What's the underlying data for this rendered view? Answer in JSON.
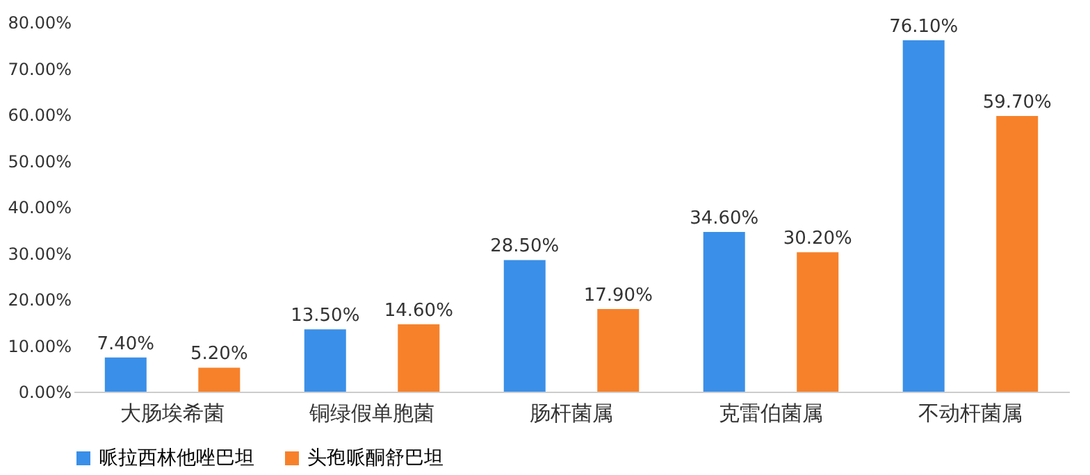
{
  "chart_data": {
    "type": "bar",
    "categories": [
      "大肠埃希菌",
      "铜绿假单胞菌",
      "肠杆菌属",
      "克雷伯菌属",
      "不动杆菌属"
    ],
    "series": [
      {
        "name": "哌拉西林他唑巴坦",
        "color": "#3a8fe8",
        "values": [
          7.4,
          13.5,
          28.5,
          34.6,
          76.1
        ],
        "value_labels": [
          "7.40%",
          "13.50%",
          "28.50%",
          "34.60%",
          "76.10%"
        ]
      },
      {
        "name": "头孢哌酮舒巴坦",
        "color": "#f7812a",
        "values": [
          5.2,
          14.6,
          17.9,
          30.2,
          59.7
        ],
        "value_labels": [
          "5.20%",
          "14.60%",
          "17.90%",
          "30.20%",
          "59.70%"
        ]
      }
    ],
    "ylim": [
      0,
      80
    ],
    "yticks": [
      {
        "value": 0,
        "label": "0.00%"
      },
      {
        "value": 10,
        "label": "10.00%"
      },
      {
        "value": 20,
        "label": "20.00%"
      },
      {
        "value": 30,
        "label": "30.00%"
      },
      {
        "value": 40,
        "label": "40.00%"
      },
      {
        "value": 50,
        "label": "50.00%"
      },
      {
        "value": 60,
        "label": "60.00%"
      },
      {
        "value": 70,
        "label": "70.00%"
      },
      {
        "value": 80,
        "label": "80.00%"
      }
    ],
    "grid": false,
    "legend": "bottom"
  }
}
